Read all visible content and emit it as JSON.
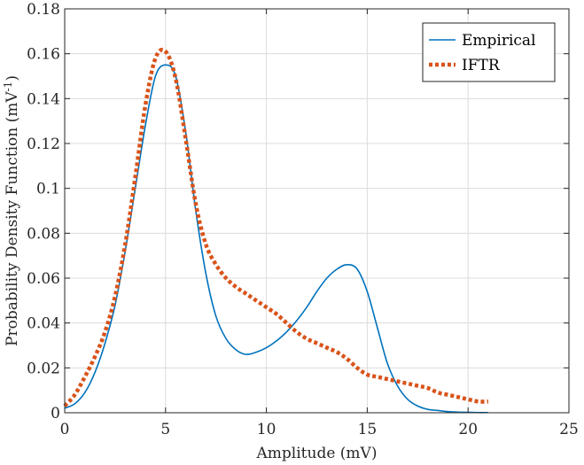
{
  "chart_data": {
    "type": "line",
    "title": "",
    "xlabel": "Amplitude (mV)",
    "ylabel_prefix": "Probability Density Function (mV",
    "ylabel_sup": "-1",
    "ylabel_suffix": ")",
    "xlim": [
      0,
      25
    ],
    "ylim": [
      0,
      0.18
    ],
    "x_ticks": [
      0,
      5,
      10,
      15,
      20,
      25
    ],
    "x_tick_labels": [
      "0",
      "5",
      "10",
      "15",
      "20",
      "25"
    ],
    "y_ticks": [
      0,
      0.02,
      0.04,
      0.06,
      0.08,
      0.1,
      0.12,
      0.14,
      0.16,
      0.18
    ],
    "y_tick_labels": [
      "0",
      "0.02",
      "0.04",
      "0.06",
      "0.08",
      "0.1",
      "0.12",
      "0.14",
      "0.16",
      "0.18"
    ],
    "grid": true,
    "legend_position": "top-right",
    "series": [
      {
        "name": "Empirical",
        "color": "#0072BD",
        "style": "solid",
        "x": [
          0,
          0.5,
          1,
          1.5,
          2,
          2.5,
          3,
          3.5,
          4,
          4.5,
          5,
          5.5,
          6,
          6.5,
          7,
          7.5,
          8,
          8.5,
          9,
          9.5,
          10,
          10.5,
          11,
          11.5,
          12,
          12.5,
          13,
          13.5,
          14,
          14.5,
          15,
          15.5,
          16,
          16.5,
          17,
          17.5,
          18,
          18.5,
          19,
          19.5,
          20,
          20.5,
          21
        ],
        "y": [
          0.002,
          0.004,
          0.009,
          0.018,
          0.031,
          0.048,
          0.072,
          0.1,
          0.128,
          0.15,
          0.155,
          0.15,
          0.125,
          0.09,
          0.062,
          0.043,
          0.033,
          0.028,
          0.026,
          0.027,
          0.029,
          0.032,
          0.036,
          0.041,
          0.047,
          0.054,
          0.06,
          0.064,
          0.066,
          0.064,
          0.054,
          0.038,
          0.022,
          0.012,
          0.006,
          0.003,
          0.0015,
          0.001,
          0.0005,
          0.0003,
          0.0002,
          0.0001,
          0.0001
        ]
      },
      {
        "name": "IFTR",
        "color": "#D95319",
        "style": "dotted",
        "x": [
          0,
          0.5,
          1,
          1.5,
          2,
          2.5,
          3,
          3.5,
          4,
          4.5,
          5,
          5.5,
          6,
          6.5,
          7,
          7.5,
          8,
          8.5,
          9,
          9.5,
          10,
          10.5,
          11,
          11.5,
          12,
          12.5,
          13,
          13.5,
          14,
          14.5,
          15,
          15.5,
          16,
          16.5,
          17,
          17.5,
          18,
          18.5,
          19,
          19.5,
          20,
          20.5,
          21
        ],
        "y": [
          0.003,
          0.008,
          0.016,
          0.025,
          0.036,
          0.052,
          0.075,
          0.105,
          0.137,
          0.158,
          0.161,
          0.149,
          0.122,
          0.093,
          0.075,
          0.066,
          0.06,
          0.056,
          0.053,
          0.05,
          0.047,
          0.044,
          0.04,
          0.036,
          0.033,
          0.031,
          0.029,
          0.027,
          0.024,
          0.02,
          0.017,
          0.016,
          0.015,
          0.014,
          0.013,
          0.012,
          0.011,
          0.009,
          0.008,
          0.007,
          0.006,
          0.005,
          0.005
        ]
      }
    ]
  }
}
